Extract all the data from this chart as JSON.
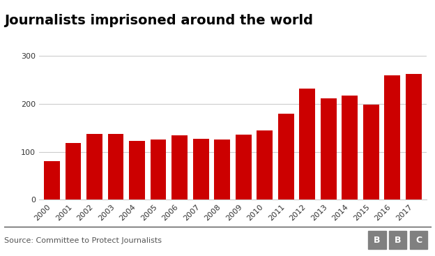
{
  "title": "Journalists imprisoned around the world",
  "years": [
    "2000",
    "2001",
    "2002",
    "2003",
    "2004",
    "2005",
    "2006",
    "2007",
    "2008",
    "2009",
    "2010",
    "2011",
    "2012",
    "2013",
    "2014",
    "2015",
    "2016",
    "2017"
  ],
  "values": [
    81,
    118,
    138,
    137,
    122,
    125,
    134,
    127,
    125,
    136,
    145,
    179,
    232,
    211,
    218,
    199,
    259,
    262
  ],
  "bar_color": "#cc0000",
  "background_color": "#ffffff",
  "ylim": [
    0,
    310
  ],
  "yticks": [
    0,
    100,
    200,
    300
  ],
  "source_text": "Source: Committee to Protect Journalists",
  "grid_color": "#cccccc",
  "title_fontsize": 14,
  "tick_fontsize": 8,
  "source_fontsize": 8,
  "bbc_bg_color": "#808080",
  "bbc_letters": [
    "B",
    "B",
    "C"
  ]
}
